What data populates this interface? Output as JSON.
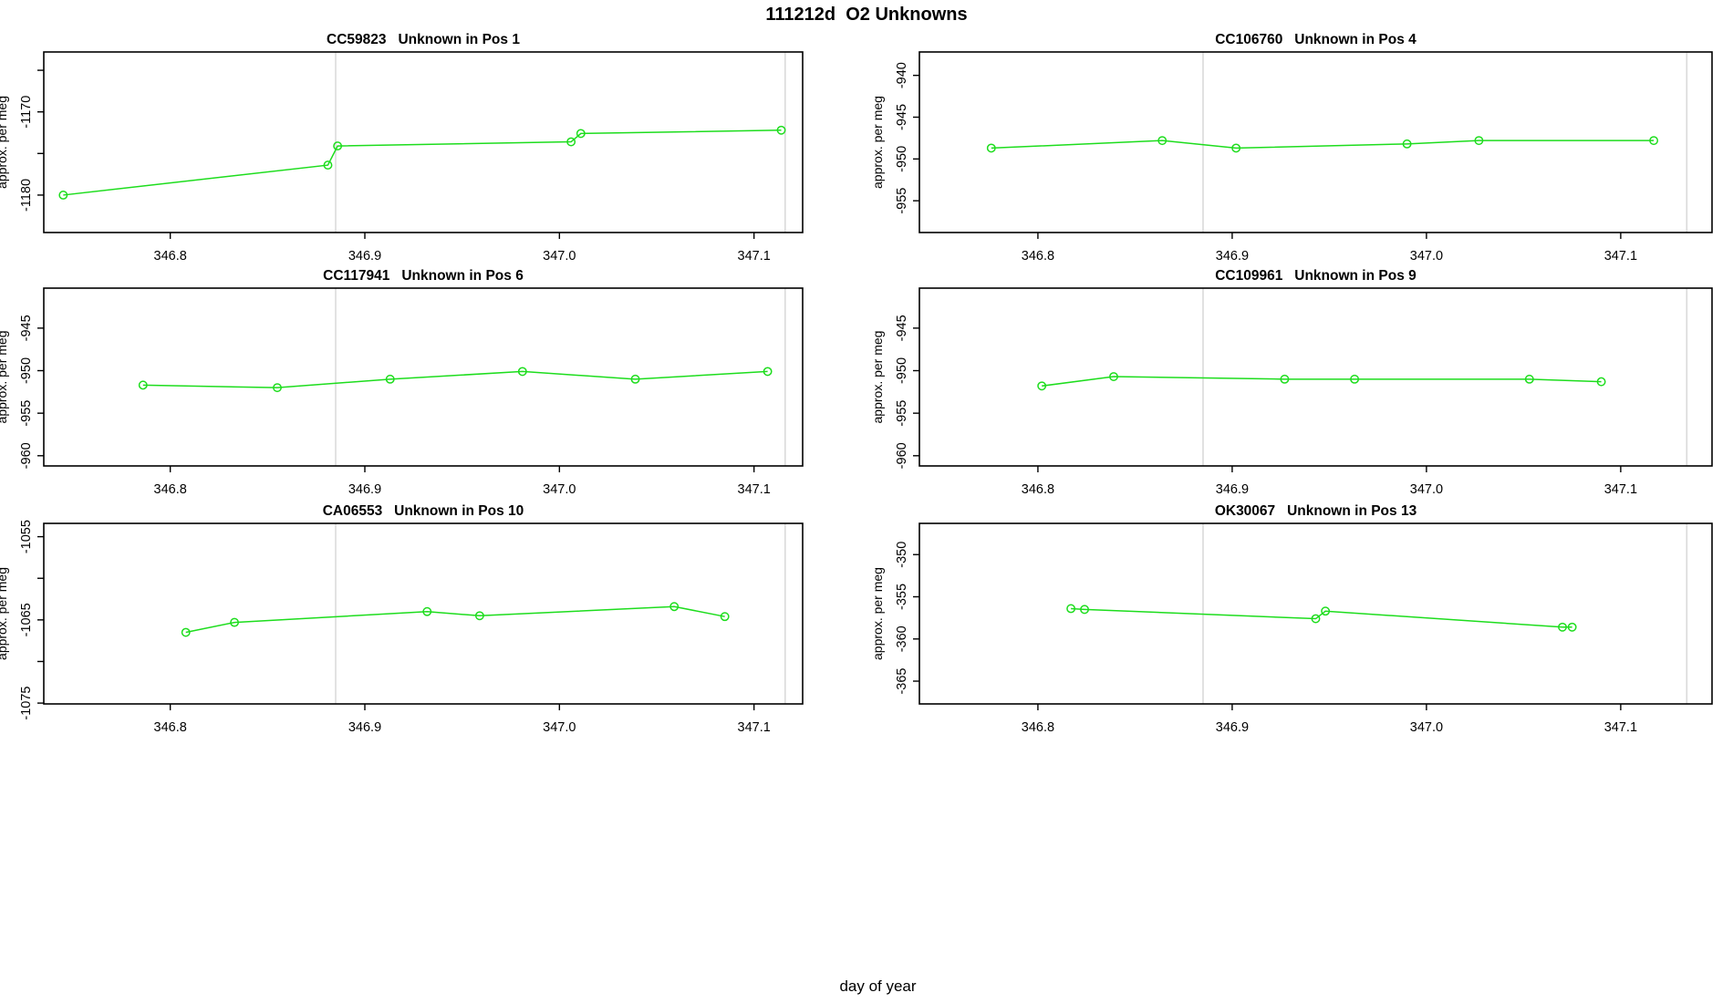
{
  "main_title": "111212d  O2 Unknowns",
  "xlabel": "day of year",
  "colors": {
    "line": "#1ddd1d",
    "reference_line": "#dadada",
    "axis": "#000000",
    "background": "#ffffff"
  },
  "x_ticks": [
    {
      "v": 346.8,
      "label": "346.8"
    },
    {
      "v": 346.9,
      "label": "346.9"
    },
    {
      "v": 347.0,
      "label": "347.0"
    },
    {
      "v": 347.1,
      "label": "347.1"
    }
  ],
  "chart_data": [
    {
      "type": "line",
      "title_parts": [
        "CC59823",
        "Unknown in Pos 1"
      ],
      "ylabel": "approx. per meg",
      "col": "left",
      "row": 0,
      "xlim": [
        346.735,
        347.125
      ],
      "ylim": [
        -1184.5,
        -1162.8
      ],
      "x": [
        346.745,
        346.881,
        346.886,
        347.006,
        347.011,
        347.114
      ],
      "y": [
        -1180.0,
        -1176.4,
        -1174.1,
        -1173.6,
        -1172.6,
        -1172.2
      ],
      "y_ticks": [
        {
          "v": -1165,
          "label": ""
        },
        {
          "v": -1170,
          "label": "-1170"
        },
        {
          "v": -1175,
          "label": ""
        },
        {
          "v": -1180,
          "label": "-1180"
        }
      ],
      "ref_lines": [
        346.885,
        347.116
      ]
    },
    {
      "type": "line",
      "title_parts": [
        "CC106760",
        "Unknown in Pos 4"
      ],
      "ylabel": "approx. per meg",
      "col": "right",
      "row": 0,
      "xlim": [
        346.739,
        347.147
      ],
      "ylim": [
        -958.8,
        -937.2
      ],
      "x": [
        346.776,
        346.864,
        346.902,
        346.99,
        347.027,
        347.117
      ],
      "y": [
        -948.7,
        -947.8,
        -948.7,
        -948.2,
        -947.8,
        -947.8
      ],
      "y_ticks": [
        {
          "v": -940,
          "label": "-940"
        },
        {
          "v": -945,
          "label": "-945"
        },
        {
          "v": -950,
          "label": "-950"
        },
        {
          "v": -955,
          "label": "-955"
        }
      ],
      "ref_lines": [
        346.885,
        347.134
      ]
    },
    {
      "type": "line",
      "title_parts": [
        "CC117941",
        "Unknown in Pos 6"
      ],
      "ylabel": "approx. per meg",
      "col": "left",
      "row": 1,
      "xlim": [
        346.735,
        347.125
      ],
      "ylim": [
        -961.2,
        -940.3
      ],
      "x": [
        346.786,
        346.855,
        346.913,
        346.981,
        347.039,
        347.107
      ],
      "y": [
        -951.7,
        -952.0,
        -951.0,
        -950.1,
        -951.0,
        -950.1
      ],
      "y_ticks": [
        {
          "v": -945,
          "label": "-945"
        },
        {
          "v": -950,
          "label": "-950"
        },
        {
          "v": -955,
          "label": "-955"
        },
        {
          "v": -960,
          "label": "-960"
        }
      ],
      "ref_lines": [
        346.885,
        347.116
      ]
    },
    {
      "type": "line",
      "title_parts": [
        "CC109961",
        "Unknown in Pos 9"
      ],
      "ylabel": "approx. per meg",
      "col": "right",
      "row": 1,
      "xlim": [
        346.739,
        347.147
      ],
      "ylim": [
        -961.2,
        -940.3
      ],
      "x": [
        346.802,
        346.839,
        346.927,
        346.963,
        347.053,
        347.09
      ],
      "y": [
        -951.8,
        -950.7,
        -951.0,
        -951.0,
        -951.0,
        -951.3
      ],
      "y_ticks": [
        {
          "v": -945,
          "label": "-945"
        },
        {
          "v": -950,
          "label": "-950"
        },
        {
          "v": -955,
          "label": "-955"
        },
        {
          "v": -960,
          "label": "-960"
        }
      ],
      "ref_lines": [
        346.885,
        347.134
      ]
    },
    {
      "type": "line",
      "title_parts": [
        "CA06553",
        "Unknown in Pos 10"
      ],
      "ylabel": "approx. per meg",
      "col": "left",
      "row": 2,
      "xlim": [
        346.735,
        347.125
      ],
      "ylim": [
        -1075.1,
        -1053.4
      ],
      "x": [
        346.808,
        346.833,
        346.932,
        346.959,
        347.059,
        347.085
      ],
      "y": [
        -1066.5,
        -1065.3,
        -1064.0,
        -1064.5,
        -1063.4,
        -1064.6
      ],
      "y_ticks": [
        {
          "v": -1055,
          "label": "-1055"
        },
        {
          "v": -1060,
          "label": ""
        },
        {
          "v": -1065,
          "label": "-1065"
        },
        {
          "v": -1070,
          "label": ""
        },
        {
          "v": -1075,
          "label": "-1075"
        }
      ],
      "ref_lines": [
        346.885,
        347.116
      ]
    },
    {
      "type": "line",
      "title_parts": [
        "OK30067",
        "Unknown in Pos 13"
      ],
      "ylabel": "approx. per meg",
      "col": "right",
      "row": 2,
      "xlim": [
        346.739,
        347.147
      ],
      "ylim": [
        -367.7,
        -346.3
      ],
      "x": [
        346.817,
        346.824,
        346.943,
        346.948,
        347.07,
        347.075
      ],
      "y": [
        -356.4,
        -356.5,
        -357.6,
        -356.7,
        -358.6,
        -358.6
      ],
      "y_ticks": [
        {
          "v": -350,
          "label": "-350"
        },
        {
          "v": -355,
          "label": "-355"
        },
        {
          "v": -360,
          "label": "-360"
        },
        {
          "v": -365,
          "label": "-365"
        }
      ],
      "ref_lines": [
        346.885,
        347.134
      ]
    }
  ]
}
